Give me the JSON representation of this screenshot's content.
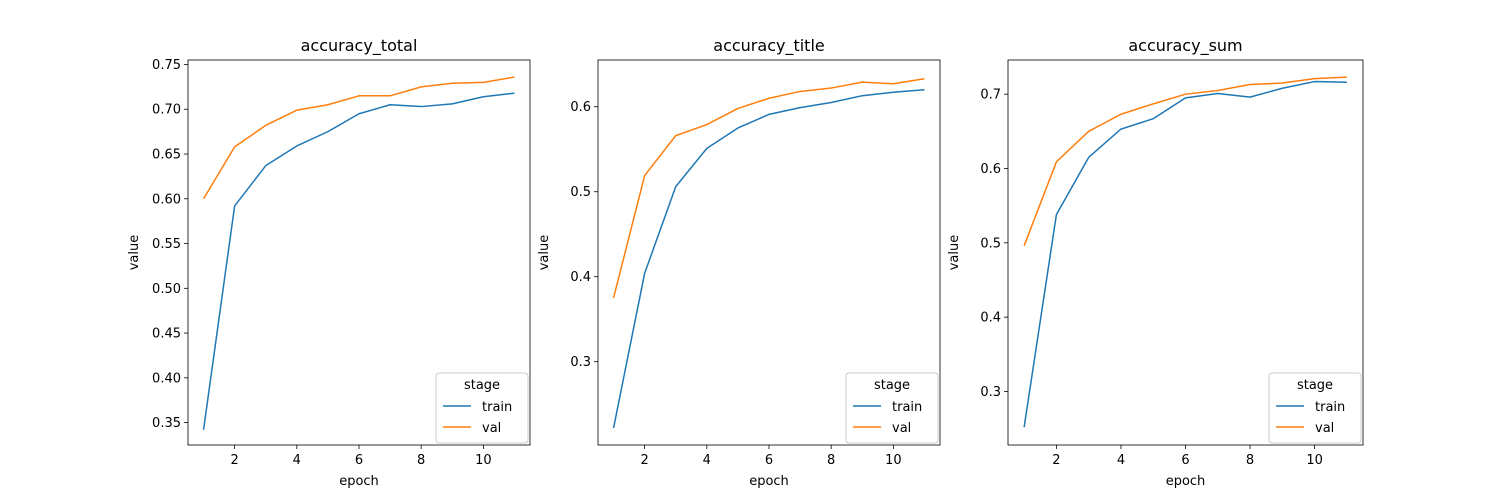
{
  "chart_data": [
    {
      "type": "line",
      "title": "accuracy_total",
      "xlabel": "epoch",
      "ylabel": "value",
      "xlim": [
        0.5,
        11.5
      ],
      "ylim": [
        0.325,
        0.755
      ],
      "xticks": [
        2,
        4,
        6,
        8,
        10
      ],
      "yticks": [
        0.35,
        0.4,
        0.45,
        0.5,
        0.55,
        0.6,
        0.65,
        0.7,
        0.75
      ],
      "ytick_labels": [
        "0.35",
        "0.40",
        "0.45",
        "0.50",
        "0.55",
        "0.60",
        "0.65",
        "0.70",
        "0.75"
      ],
      "x": [
        1,
        2,
        3,
        4,
        5,
        6,
        7,
        8,
        9,
        10,
        11
      ],
      "series": [
        {
          "name": "train",
          "color": "#1f77b4",
          "values": [
            0.342,
            0.592,
            0.637,
            0.659,
            0.675,
            0.695,
            0.705,
            0.703,
            0.706,
            0.714,
            0.718
          ]
        },
        {
          "name": "val",
          "color": "#ff7f0e",
          "values": [
            0.6,
            0.658,
            0.682,
            0.699,
            0.705,
            0.715,
            0.715,
            0.725,
            0.729,
            0.73,
            0.736
          ]
        }
      ],
      "legend": {
        "title": "stage",
        "position": "lower right"
      }
    },
    {
      "type": "line",
      "title": "accuracy_title",
      "xlabel": "epoch",
      "ylabel": "value",
      "xlim": [
        0.5,
        11.5
      ],
      "ylim": [
        0.202,
        0.655
      ],
      "xticks": [
        2,
        4,
        6,
        8,
        10
      ],
      "yticks": [
        0.3,
        0.4,
        0.5,
        0.6
      ],
      "ytick_labels": [
        "0.3",
        "0.4",
        "0.5",
        "0.6"
      ],
      "x": [
        1,
        2,
        3,
        4,
        5,
        6,
        7,
        8,
        9,
        10,
        11
      ],
      "series": [
        {
          "name": "train",
          "color": "#1f77b4",
          "values": [
            0.222,
            0.404,
            0.506,
            0.551,
            0.575,
            0.591,
            0.599,
            0.605,
            0.613,
            0.617,
            0.62
          ]
        },
        {
          "name": "val",
          "color": "#ff7f0e",
          "values": [
            0.375,
            0.519,
            0.566,
            0.579,
            0.598,
            0.61,
            0.618,
            0.622,
            0.629,
            0.627,
            0.633
          ]
        }
      ],
      "legend": {
        "title": "stage",
        "position": "lower right"
      }
    },
    {
      "type": "line",
      "title": "accuracy_sum",
      "xlabel": "epoch",
      "ylabel": "value",
      "xlim": [
        0.5,
        11.5
      ],
      "ylim": [
        0.228,
        0.746
      ],
      "xticks": [
        2,
        4,
        6,
        8,
        10
      ],
      "yticks": [
        0.3,
        0.4,
        0.5,
        0.6,
        0.7
      ],
      "ytick_labels": [
        "0.3",
        "0.4",
        "0.5",
        "0.6",
        "0.7"
      ],
      "x": [
        1,
        2,
        3,
        4,
        5,
        6,
        7,
        8,
        9,
        10,
        11
      ],
      "series": [
        {
          "name": "train",
          "color": "#1f77b4",
          "values": [
            0.252,
            0.538,
            0.615,
            0.653,
            0.667,
            0.695,
            0.701,
            0.696,
            0.708,
            0.717,
            0.716
          ]
        },
        {
          "name": "val",
          "color": "#ff7f0e",
          "values": [
            0.496,
            0.609,
            0.65,
            0.673,
            0.687,
            0.7,
            0.705,
            0.713,
            0.715,
            0.721,
            0.723
          ]
        }
      ],
      "legend": {
        "title": "stage",
        "position": "lower right"
      }
    }
  ]
}
